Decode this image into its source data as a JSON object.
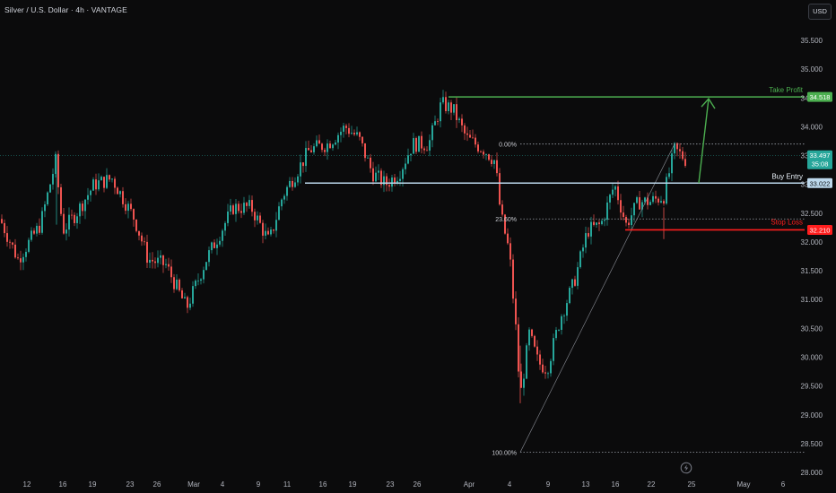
{
  "header": {
    "title": "Silver / U.S. Dollar · 4h · VANTAGE",
    "currency_button": "USD"
  },
  "colors": {
    "background": "#0b0b0c",
    "up_candle": "#26a69a",
    "down_candle": "#ef5350",
    "take_profit": "#4caf50",
    "buy_entry": "#bcd8ec",
    "stop_loss": "#ff1e1e",
    "current_price": "#26a69a",
    "axis_text": "#b2b5be",
    "fib_line": "#9a9ea6"
  },
  "icons": {
    "replay": "lightning-bolt-icon"
  },
  "chart_data": {
    "type": "candlestick",
    "symbol": "Silver / U.S. Dollar",
    "timeframe": "4h",
    "broker": "VANTAGE",
    "currency": "USD",
    "y_ticks": [
      "35.500",
      "35.000",
      "34.500",
      "34.000",
      "33.500",
      "33.000",
      "32.500",
      "32.000",
      "31.500",
      "31.000",
      "30.500",
      "30.000",
      "29.500",
      "29.000",
      "28.500",
      "28.000"
    ],
    "x_ticks": [
      "12",
      "16",
      "19",
      "23",
      "26",
      "Mar",
      "4",
      "9",
      "11",
      "16",
      "19",
      "23",
      "26",
      "Apr",
      "4",
      "9",
      "13",
      "16",
      "22",
      "25",
      "May",
      "6"
    ],
    "price_path": [
      {
        "x": 0,
        "close": 32.4
      },
      {
        "x": 20,
        "close": 31.7
      },
      {
        "x": 45,
        "close": 32.3
      },
      {
        "x": 62,
        "close": 33.4
      },
      {
        "x": 70,
        "close": 32.2
      },
      {
        "x": 85,
        "close": 32.5
      },
      {
        "x": 105,
        "close": 33.0
      },
      {
        "x": 125,
        "close": 33.1
      },
      {
        "x": 150,
        "close": 32.4
      },
      {
        "x": 165,
        "close": 31.7
      },
      {
        "x": 185,
        "close": 31.6
      },
      {
        "x": 208,
        "close": 30.85
      },
      {
        "x": 230,
        "close": 31.7
      },
      {
        "x": 260,
        "close": 32.6
      },
      {
        "x": 280,
        "close": 32.6
      },
      {
        "x": 300,
        "close": 32.0
      },
      {
        "x": 315,
        "close": 32.8
      },
      {
        "x": 330,
        "close": 33.2
      },
      {
        "x": 345,
        "close": 33.6
      },
      {
        "x": 365,
        "close": 33.7
      },
      {
        "x": 385,
        "close": 34.0
      },
      {
        "x": 400,
        "close": 33.8
      },
      {
        "x": 415,
        "close": 33.2
      },
      {
        "x": 430,
        "close": 33.0
      },
      {
        "x": 445,
        "close": 33.2
      },
      {
        "x": 460,
        "close": 33.7
      },
      {
        "x": 478,
        "close": 33.7
      },
      {
        "x": 492,
        "close": 34.4
      },
      {
        "x": 505,
        "close": 34.3
      },
      {
        "x": 520,
        "close": 33.8
      },
      {
        "x": 540,
        "close": 33.6
      },
      {
        "x": 552,
        "close": 33.4
      },
      {
        "x": 558,
        "close": 32.5
      },
      {
        "x": 568,
        "close": 31.8
      },
      {
        "x": 575,
        "close": 30.5
      },
      {
        "x": 580,
        "close": 29.3
      },
      {
        "x": 590,
        "close": 30.4
      },
      {
        "x": 600,
        "close": 29.9
      },
      {
        "x": 610,
        "close": 29.8
      },
      {
        "x": 625,
        "close": 30.7
      },
      {
        "x": 640,
        "close": 31.3
      },
      {
        "x": 655,
        "close": 32.2
      },
      {
        "x": 670,
        "close": 32.3
      },
      {
        "x": 685,
        "close": 33.0
      },
      {
        "x": 698,
        "close": 32.3
      },
      {
        "x": 712,
        "close": 32.7
      },
      {
        "x": 725,
        "close": 32.7
      },
      {
        "x": 740,
        "close": 32.8
      },
      {
        "x": 752,
        "close": 33.6
      },
      {
        "x": 760,
        "close": 33.5
      },
      {
        "x": 766,
        "close": 33.4
      }
    ],
    "levels": {
      "take_profit": {
        "label": "Take Profit",
        "price": 34.518,
        "tag": "34.518"
      },
      "buy_entry": {
        "label": "Buy Entry",
        "price": 33.022,
        "tag": "33.022"
      },
      "stop_loss": {
        "label": "Stop Loss",
        "price": 32.21,
        "tag": "32.210"
      },
      "current": {
        "price": 33.497,
        "tag": "33.497",
        "countdown": "35:08"
      }
    },
    "fibonacci": [
      {
        "label": "0.00%",
        "price": 33.7
      },
      {
        "label": "23.60%",
        "price": 32.4
      },
      {
        "label": "100.00%",
        "price": 28.35
      }
    ],
    "projection": {
      "from_price": 33.022,
      "to_price": 34.518
    }
  }
}
